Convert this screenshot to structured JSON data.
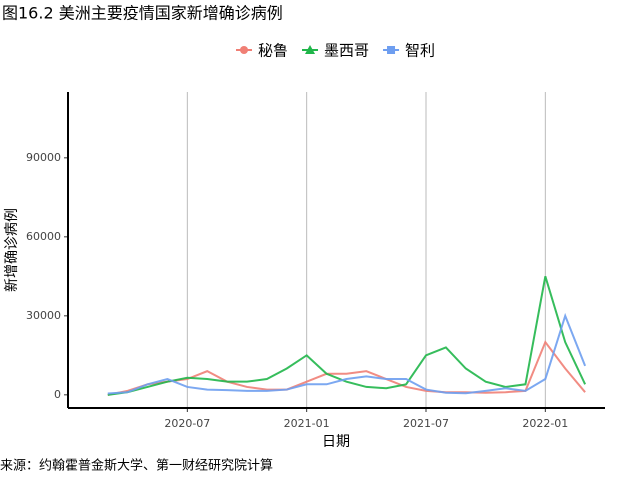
{
  "chart_data": {
    "type": "line",
    "title": "图16.2 美洲主要疫情国家新增确诊病例",
    "caption": "来源：约翰霍普金斯大学、第一财经研究院计算",
    "x_label": "日期",
    "y_label": "新增确诊病例",
    "x": [
      "2020-03",
      "2020-04",
      "2020-05",
      "2020-06",
      "2020-07",
      "2020-08",
      "2020-09",
      "2020-10",
      "2020-11",
      "2020-12",
      "2021-01",
      "2021-02",
      "2021-03",
      "2021-04",
      "2021-05",
      "2021-06",
      "2021-07",
      "2021-08",
      "2021-09",
      "2021-10",
      "2021-11",
      "2021-12",
      "2022-01",
      "2022-02",
      "2022-03"
    ],
    "series": [
      {
        "name": "秘鲁",
        "color": "#f07f75",
        "values": [
          0,
          1500,
          4000,
          5000,
          6000,
          9000,
          5000,
          3000,
          2000,
          2000,
          5000,
          8000,
          8000,
          9000,
          6000,
          3000,
          1500,
          1000,
          1000,
          800,
          1000,
          1500,
          20000,
          10000,
          1000
        ]
      },
      {
        "name": "墨西哥",
        "color": "#20b64a",
        "values": [
          0,
          1000,
          3000,
          5000,
          6500,
          6000,
          5000,
          5000,
          6000,
          10000,
          15000,
          8000,
          5000,
          3000,
          2500,
          4000,
          15000,
          18000,
          10000,
          5000,
          3000,
          4000,
          45000,
          20000,
          4000
        ]
      },
      {
        "name": "智利",
        "color": "#6e9ef0",
        "values": [
          500,
          1000,
          4000,
          6000,
          3000,
          2000,
          1800,
          1500,
          1500,
          2000,
          4000,
          4000,
          6000,
          7000,
          6000,
          6000,
          2000,
          800,
          600,
          1500,
          2500,
          1500,
          6000,
          30000,
          11000
        ]
      }
    ],
    "xlim": [
      "2020-01",
      "2022-04"
    ],
    "xticks": [
      "2020-07",
      "2021-01",
      "2021-07",
      "2022-01"
    ],
    "ylim": [
      -5000,
      115000
    ],
    "yticks": [
      0,
      30000,
      60000,
      90000
    ],
    "grid": true
  }
}
